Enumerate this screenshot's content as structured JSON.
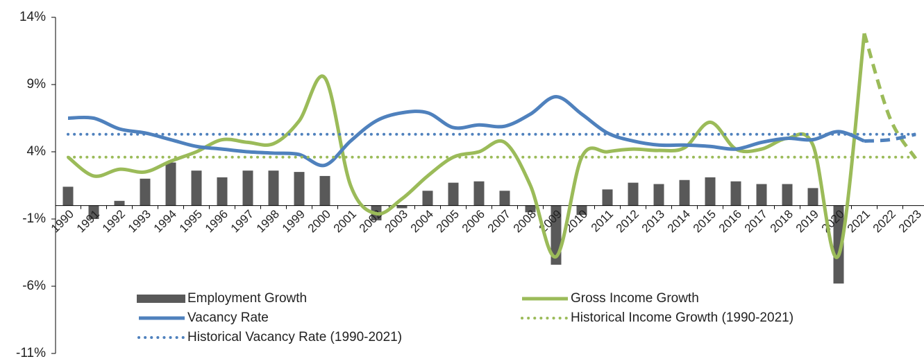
{
  "chart_data": {
    "type": "bar-line",
    "categories": [
      "1990",
      "1991",
      "1992",
      "1993",
      "1994",
      "1995",
      "1996",
      "1997",
      "1998",
      "1999",
      "2000",
      "2001",
      "2002",
      "2003",
      "2004",
      "2005",
      "2006",
      "2007",
      "2008",
      "2009",
      "2010",
      "2011",
      "2012",
      "2013",
      "2014",
      "2015",
      "2016",
      "2017",
      "2018",
      "2019",
      "2020",
      "2021",
      "2022",
      "2023"
    ],
    "series": [
      {
        "name": "Employment Growth",
        "kind": "bar",
        "color": "#595959",
        "values": [
          1.4,
          -1.0,
          0.35,
          2.0,
          3.2,
          2.6,
          2.1,
          2.6,
          2.6,
          2.5,
          2.2,
          null,
          -1.1,
          -0.2,
          1.1,
          1.7,
          1.8,
          1.1,
          -0.5,
          -4.4,
          -0.7,
          1.2,
          1.7,
          1.6,
          1.9,
          2.1,
          1.8,
          1.6,
          1.6,
          1.3,
          -5.8,
          null,
          null,
          null
        ]
      },
      {
        "name": "Gross Income Growth",
        "kind": "line",
        "color": "#9bbb59",
        "dash_from": "2021",
        "values": [
          3.6,
          2.2,
          2.7,
          2.5,
          3.3,
          4.0,
          4.9,
          4.7,
          4.6,
          6.3,
          9.5,
          1.5,
          -0.6,
          0.5,
          2.2,
          3.6,
          4.0,
          4.7,
          1.5,
          -3.8,
          3.6,
          4.0,
          4.2,
          4.1,
          4.3,
          6.2,
          4.2,
          4.2,
          5.0,
          4.5,
          -3.7,
          12.8,
          6.5,
          3.5
        ]
      },
      {
        "name": "Vacancy Rate",
        "kind": "line",
        "color": "#4f81bd",
        "dash_from": "2021",
        "values": [
          6.5,
          6.5,
          5.7,
          5.4,
          4.9,
          4.4,
          4.2,
          4.0,
          3.9,
          3.8,
          3.0,
          4.8,
          6.3,
          6.9,
          6.9,
          5.8,
          6.0,
          5.9,
          6.8,
          8.1,
          6.8,
          5.4,
          4.8,
          4.5,
          4.5,
          4.4,
          4.2,
          4.7,
          5.0,
          4.9,
          5.5,
          4.8,
          4.9,
          5.3
        ]
      },
      {
        "name": "Historical Income Growth (1990-2021)",
        "kind": "level",
        "color": "#9bbb59",
        "value": 3.6
      },
      {
        "name": "Historical Vacancy Rate (1990-2021)",
        "kind": "level",
        "color": "#4f81bd",
        "value": 5.3
      }
    ],
    "ylim": [
      -11,
      14
    ],
    "yticks": [
      {
        "value": -11,
        "label": "-11%"
      },
      {
        "value": -6,
        "label": "-6%"
      },
      {
        "value": -1,
        "label": "-1%"
      },
      {
        "value": 4,
        "label": "4%"
      },
      {
        "value": 9,
        "label": "9%"
      },
      {
        "value": 14,
        "label": "14%"
      }
    ],
    "grid": false,
    "legend": "bottom"
  }
}
